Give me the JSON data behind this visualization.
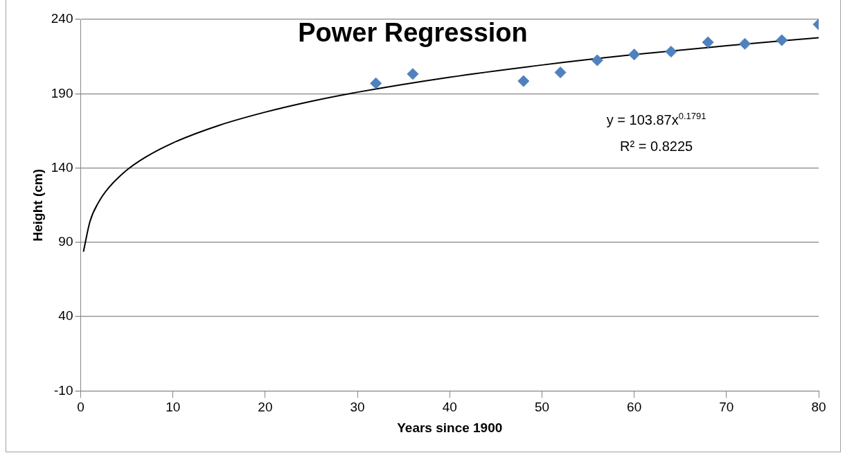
{
  "chart_data": {
    "type": "scatter",
    "title": "Power Regression",
    "xlabel": "Years since 1900",
    "ylabel": "Height (cm)",
    "xlim": [
      0,
      80
    ],
    "xticks": [
      0,
      10,
      20,
      30,
      40,
      50,
      60,
      70,
      80
    ],
    "ylim": [
      -10,
      240
    ],
    "yticks": [
      -10,
      40,
      90,
      140,
      190,
      240
    ],
    "grid": "y",
    "marker": "diamond",
    "series": [
      {
        "color": "#4f81bd",
        "x": [
          32,
          36,
          48,
          52,
          56,
          60,
          64,
          68,
          72,
          76,
          80
        ],
        "values": [
          197.0,
          203.3,
          198.5,
          204.3,
          212.5,
          216.4,
          218.3,
          224.6,
          223.6,
          226.0,
          236.6
        ]
      },
      {
        "type": "line",
        "color": "#000000",
        "line_style": "solid",
        "marker": "none",
        "x": [
          0.3,
          1,
          2,
          3,
          5,
          7,
          10,
          15,
          20,
          25,
          30,
          40,
          50,
          60,
          70,
          80
        ],
        "values": [
          83.7,
          103.9,
          117.6,
          126.5,
          138.6,
          147.2,
          156.9,
          168.7,
          177.6,
          184.9,
          191.0,
          201.1,
          209.3,
          216.3,
          222.3,
          227.7
        ]
      }
    ],
    "annotations": [
      "y = 103.87x$^{0.1791}$",
      "R² = 0.8225"
    ]
  }
}
